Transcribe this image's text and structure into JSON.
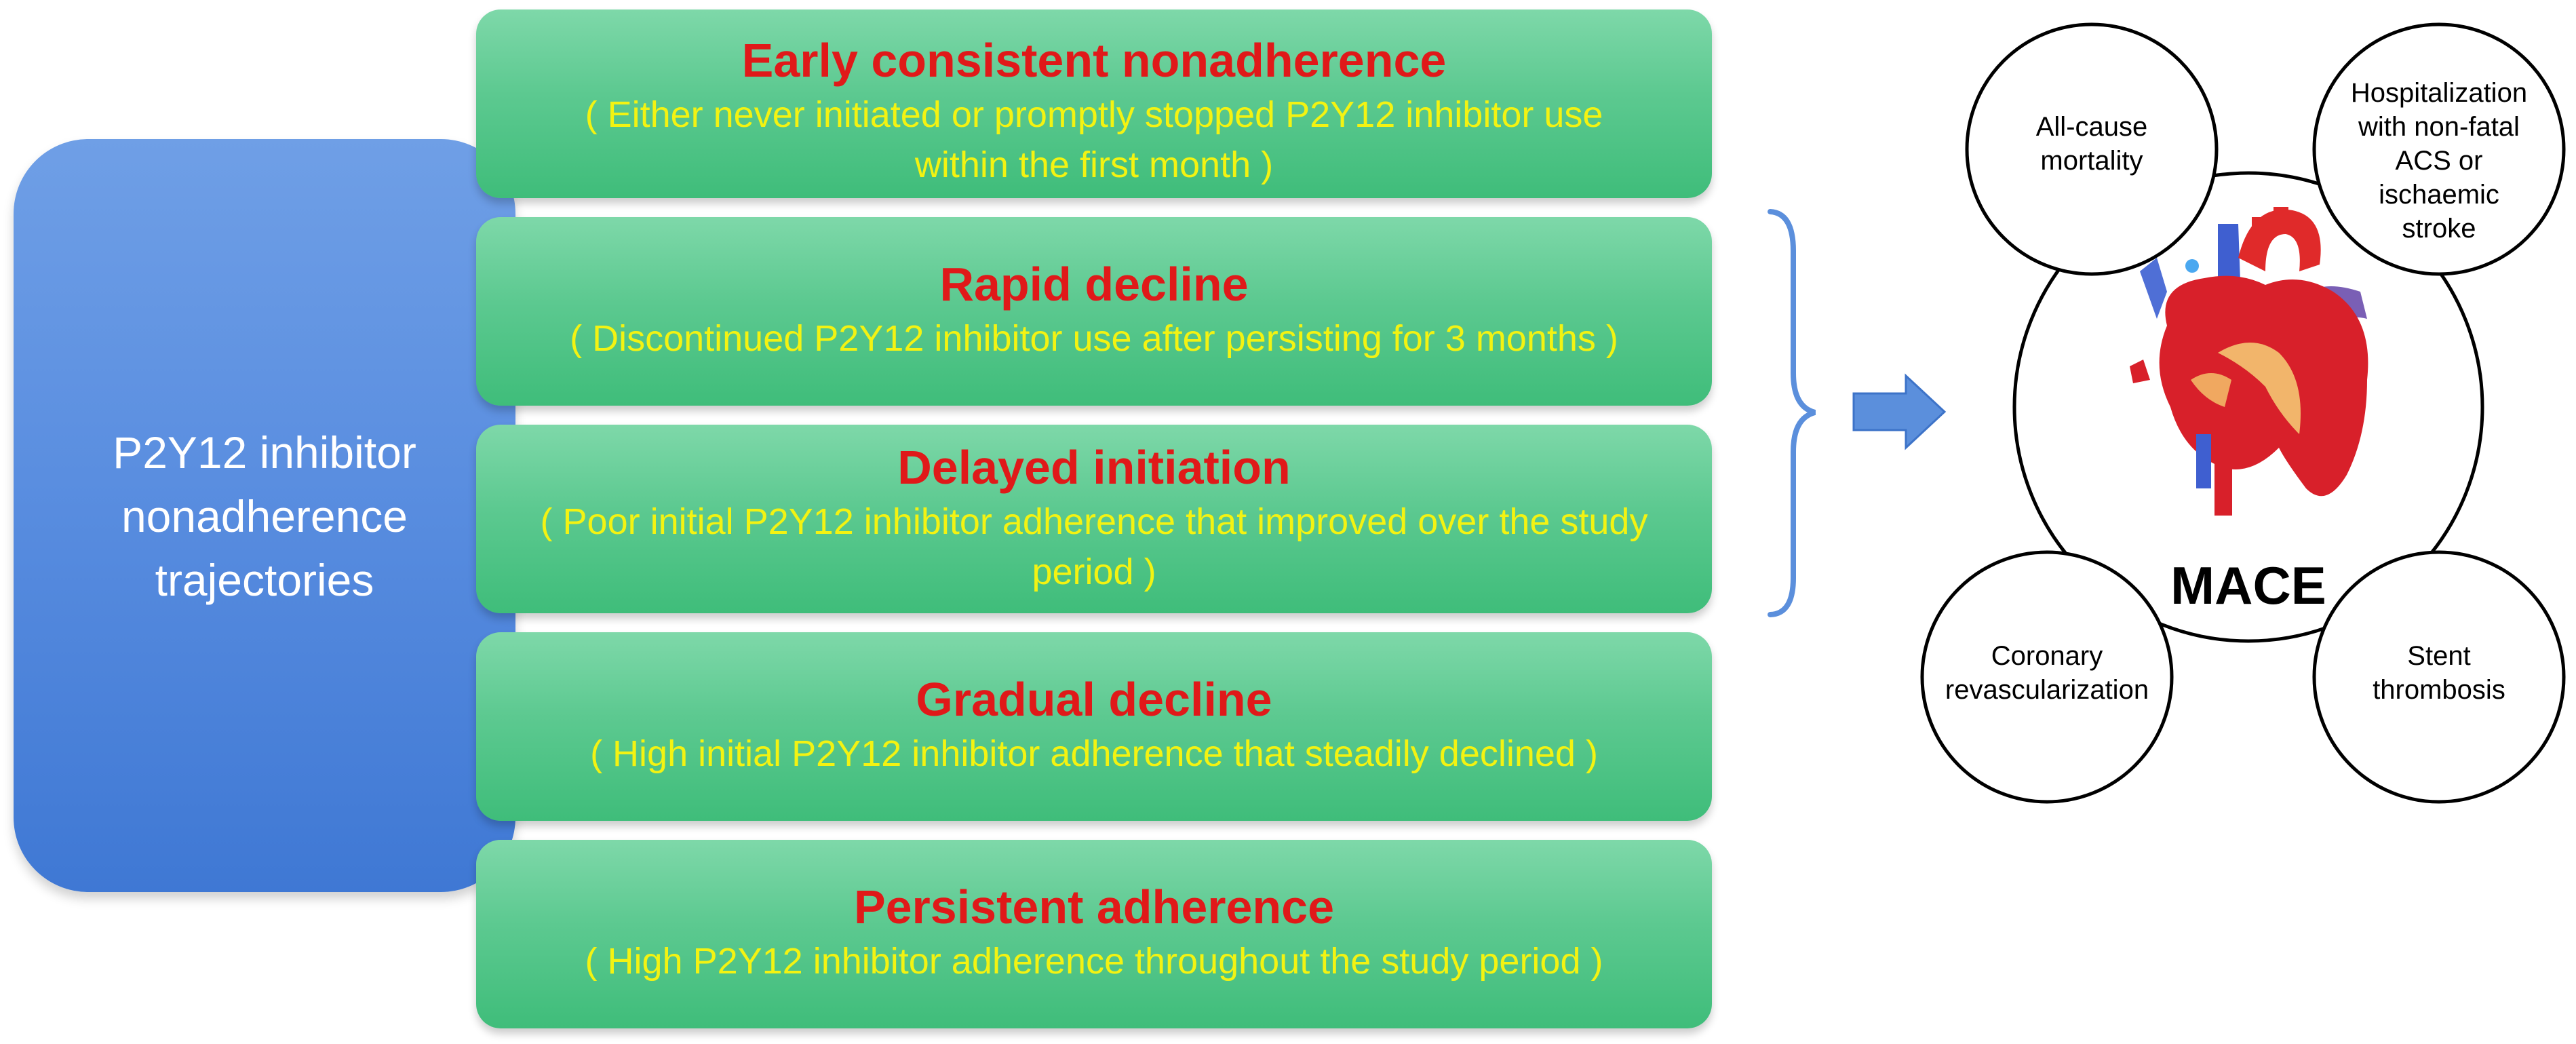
{
  "central": {
    "line1": "P2Y12 inhibitor",
    "line2": "nonadherence",
    "line3": "trajectories"
  },
  "trajectories": [
    {
      "title": "Early consistent nonadherence",
      "desc": "( Either never initiated or promptly stopped P2Y12 inhibitor use within the first month )"
    },
    {
      "title": "Rapid decline",
      "desc": "( Discontinued P2Y12 inhibitor use after persisting for 3 months )"
    },
    {
      "title": "Delayed initiation",
      "desc": "( Poor initial P2Y12 inhibitor adherence that improved over the study period )"
    },
    {
      "title": "Gradual decline",
      "desc": "( High initial P2Y12 inhibitor adherence that steadily declined )"
    },
    {
      "title": "Persistent adherence",
      "desc": "( High P2Y12 inhibitor adherence throughout the study period )"
    }
  ],
  "outcomes": {
    "center": "MACE",
    "mortality_line1": "All-cause",
    "mortality_line2": "mortality",
    "hosp_line1": "Hospitalization",
    "hosp_line2": "with non-fatal",
    "hosp_line3": "ACS or",
    "hosp_line4": "ischaemic",
    "hosp_line5": "stroke",
    "coronary_line1": "Coronary",
    "coronary_line2": "revascularization",
    "stent_line1": "Stent",
    "stent_line2": "thrombosis"
  },
  "colors": {
    "central_box": "#5a8ee0",
    "trajectory_box": "#5cc990",
    "title_text": "#e01919",
    "desc_text": "#f3f312",
    "bracket_arrow": "#5b8fdc"
  },
  "icons": {
    "heart": "anatomical-heart-icon",
    "arrow": "right-arrow-icon",
    "bracket": "right-curly-brace"
  }
}
